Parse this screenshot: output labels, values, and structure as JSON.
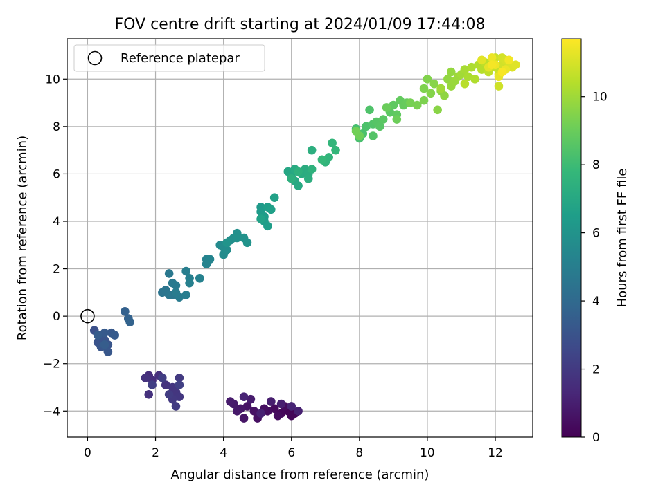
{
  "chart_data": {
    "type": "scatter",
    "title": "FOV centre drift starting at 2024/01/09 17:44:08",
    "xlabel": "Angular distance from reference (arcmin)",
    "ylabel": "Rotation from reference (arcmin)",
    "xlim": [
      -0.6,
      13.1
    ],
    "ylim": [
      -5.1,
      11.7
    ],
    "xticks": [
      0,
      2,
      4,
      6,
      8,
      10,
      12
    ],
    "yticks": [
      -4,
      -2,
      0,
      2,
      4,
      6,
      8,
      10
    ],
    "grid": true,
    "legend": {
      "position": "top-left",
      "entries": [
        "Reference platepar"
      ]
    },
    "reference_point": {
      "x": 0,
      "y": 0,
      "marker": "open-circle"
    },
    "colorbar": {
      "label": "Hours from first FF file",
      "colormap": "viridis",
      "range": [
        0,
        11.7
      ],
      "ticks": [
        0,
        2,
        4,
        6,
        8,
        10
      ]
    },
    "points_columns": [
      "x",
      "y",
      "hours"
    ],
    "points": [
      [
        6.1,
        -4.1,
        0.05
      ],
      [
        5.9,
        -4.0,
        0.1
      ],
      [
        6.0,
        -4.2,
        0.15
      ],
      [
        5.7,
        -4.1,
        0.2
      ],
      [
        5.5,
        -3.9,
        0.25
      ],
      [
        5.8,
        -3.8,
        0.3
      ],
      [
        5.6,
        -4.2,
        0.35
      ],
      [
        5.3,
        -4.0,
        0.4
      ],
      [
        5.2,
        -3.9,
        0.45
      ],
      [
        5.0,
        -4.3,
        0.5
      ],
      [
        4.9,
        -4.0,
        0.55
      ],
      [
        4.7,
        -3.8,
        0.6
      ],
      [
        4.6,
        -4.3,
        0.65
      ],
      [
        4.5,
        -3.9,
        0.7
      ],
      [
        4.4,
        -4.0,
        0.75
      ],
      [
        4.3,
        -3.7,
        0.8
      ],
      [
        4.2,
        -3.6,
        0.85
      ],
      [
        4.8,
        -3.5,
        0.9
      ],
      [
        5.4,
        -3.6,
        0.95
      ],
      [
        5.7,
        -3.7,
        1.0
      ],
      [
        6.2,
        -4.0,
        1.05
      ],
      [
        5.1,
        -4.1,
        1.1
      ],
      [
        4.6,
        -3.4,
        1.15
      ],
      [
        6.0,
        -3.8,
        1.2
      ],
      [
        1.8,
        -2.5,
        1.5
      ],
      [
        1.9,
        -2.7,
        1.55
      ],
      [
        2.1,
        -2.5,
        1.6
      ],
      [
        1.8,
        -3.3,
        1.65
      ],
      [
        1.7,
        -2.6,
        1.7
      ],
      [
        2.3,
        -2.9,
        1.75
      ],
      [
        2.5,
        -3.0,
        1.8
      ],
      [
        2.6,
        -3.2,
        1.85
      ],
      [
        2.7,
        -3.4,
        1.9
      ],
      [
        2.5,
        -3.5,
        1.95
      ],
      [
        2.7,
        -2.6,
        2.0
      ],
      [
        2.6,
        -3.8,
        2.05
      ],
      [
        2.4,
        -3.3,
        2.1
      ],
      [
        2.2,
        -2.6,
        2.15
      ],
      [
        1.9,
        -2.9,
        2.2
      ],
      [
        2.7,
        -2.9,
        2.25
      ],
      [
        0.2,
        -0.6,
        2.9
      ],
      [
        0.4,
        -0.8,
        2.95
      ],
      [
        0.3,
        -1.1,
        3.0
      ],
      [
        0.5,
        -1.0,
        3.05
      ],
      [
        0.6,
        -1.2,
        3.1
      ],
      [
        0.4,
        -1.3,
        3.15
      ],
      [
        0.6,
        -1.5,
        3.2
      ],
      [
        0.7,
        -0.7,
        3.25
      ],
      [
        0.5,
        -0.7,
        3.3
      ],
      [
        0.8,
        -0.8,
        3.35
      ],
      [
        0.3,
        -0.8,
        3.4
      ],
      [
        0.5,
        -1.2,
        3.45
      ],
      [
        1.1,
        0.2,
        3.6
      ],
      [
        1.2,
        -0.1,
        3.65
      ],
      [
        1.25,
        -0.25,
        3.7
      ],
      [
        2.2,
        1.0,
        4.5
      ],
      [
        2.3,
        1.1,
        4.55
      ],
      [
        2.4,
        0.9,
        4.6
      ],
      [
        2.5,
        0.9,
        4.65
      ],
      [
        2.4,
        1.8,
        4.7
      ],
      [
        2.5,
        1.4,
        4.75
      ],
      [
        2.6,
        1.3,
        4.8
      ],
      [
        2.7,
        0.8,
        4.85
      ],
      [
        2.6,
        1.0,
        4.9
      ],
      [
        2.9,
        0.9,
        4.95
      ],
      [
        2.9,
        1.9,
        5.0
      ],
      [
        3.0,
        1.6,
        5.05
      ],
      [
        3.0,
        1.4,
        5.1
      ],
      [
        3.3,
        1.6,
        5.15
      ],
      [
        3.5,
        2.4,
        5.2
      ],
      [
        3.5,
        2.2,
        5.25
      ],
      [
        3.6,
        2.4,
        5.3
      ],
      [
        3.9,
        3.0,
        5.55
      ],
      [
        4.0,
        2.6,
        5.6
      ],
      [
        4.0,
        2.9,
        5.65
      ],
      [
        4.1,
        2.8,
        5.7
      ],
      [
        4.2,
        3.2,
        5.75
      ],
      [
        4.3,
        3.3,
        5.8
      ],
      [
        4.4,
        3.5,
        5.85
      ],
      [
        4.4,
        3.3,
        5.9
      ],
      [
        4.6,
        3.3,
        5.95
      ],
      [
        4.7,
        3.1,
        6.0
      ],
      [
        4.1,
        3.1,
        6.05
      ],
      [
        5.1,
        4.6,
        6.3
      ],
      [
        5.1,
        4.4,
        6.35
      ],
      [
        5.2,
        4.2,
        6.4
      ],
      [
        5.2,
        4.0,
        6.45
      ],
      [
        5.3,
        3.8,
        6.5
      ],
      [
        5.3,
        4.6,
        6.55
      ],
      [
        5.4,
        4.5,
        6.6
      ],
      [
        5.5,
        5.0,
        6.65
      ],
      [
        5.1,
        4.1,
        6.7
      ],
      [
        5.9,
        6.1,
        6.9
      ],
      [
        6.0,
        5.9,
        6.95
      ],
      [
        6.1,
        5.7,
        7.0
      ],
      [
        6.2,
        5.5,
        7.05
      ],
      [
        6.1,
        6.2,
        7.1
      ],
      [
        6.3,
        6.0,
        7.15
      ],
      [
        6.4,
        6.2,
        7.2
      ],
      [
        6.5,
        6.0,
        7.25
      ],
      [
        6.5,
        5.8,
        7.3
      ],
      [
        6.6,
        7.0,
        7.35
      ],
      [
        6.0,
        5.8,
        7.4
      ],
      [
        6.2,
        6.1,
        7.45
      ],
      [
        6.6,
        6.2,
        7.5
      ],
      [
        7.0,
        6.5,
        7.6
      ],
      [
        7.1,
        6.7,
        7.65
      ],
      [
        7.2,
        7.3,
        7.7
      ],
      [
        7.3,
        7.0,
        7.75
      ],
      [
        6.9,
        6.6,
        7.8
      ],
      [
        7.9,
        7.9,
        8.2
      ],
      [
        8.0,
        7.5,
        8.25
      ],
      [
        8.1,
        7.7,
        8.3
      ],
      [
        8.2,
        8.0,
        8.35
      ],
      [
        8.3,
        8.7,
        8.4
      ],
      [
        8.4,
        8.1,
        8.45
      ],
      [
        8.4,
        7.6,
        8.5
      ],
      [
        8.5,
        8.2,
        8.55
      ],
      [
        8.6,
        8.0,
        8.6
      ],
      [
        8.7,
        8.3,
        8.65
      ],
      [
        8.9,
        8.6,
        8.7
      ],
      [
        9.0,
        8.9,
        8.75
      ],
      [
        9.1,
        8.5,
        8.8
      ],
      [
        9.2,
        9.1,
        8.85
      ],
      [
        9.3,
        8.9,
        8.9
      ],
      [
        9.4,
        9.0,
        8.95
      ],
      [
        8.8,
        8.8,
        9.0
      ],
      [
        9.1,
        8.3,
        9.05
      ],
      [
        8.0,
        7.6,
        9.1
      ],
      [
        7.9,
        7.8,
        9.15
      ],
      [
        9.5,
        9.0,
        9.25
      ],
      [
        9.7,
        8.9,
        9.3
      ],
      [
        9.9,
        9.1,
        9.35
      ],
      [
        9.9,
        9.6,
        9.4
      ],
      [
        10.0,
        10.0,
        9.45
      ],
      [
        10.1,
        9.4,
        9.5
      ],
      [
        10.2,
        9.8,
        9.55
      ],
      [
        10.3,
        8.7,
        9.6
      ],
      [
        10.4,
        9.5,
        9.65
      ],
      [
        10.5,
        9.3,
        9.7
      ],
      [
        10.6,
        10.0,
        9.75
      ],
      [
        10.7,
        10.3,
        9.8
      ],
      [
        10.7,
        9.7,
        9.85
      ],
      [
        10.8,
        9.9,
        9.9
      ],
      [
        10.9,
        10.1,
        9.95
      ],
      [
        10.4,
        9.6,
        10.0
      ],
      [
        11.0,
        10.2,
        10.05
      ],
      [
        11.1,
        10.4,
        10.15
      ],
      [
        11.2,
        10.1,
        10.2
      ],
      [
        11.3,
        10.5,
        10.25
      ],
      [
        11.4,
        10.0,
        10.3
      ],
      [
        11.5,
        10.6,
        10.35
      ],
      [
        11.6,
        10.4,
        10.4
      ],
      [
        11.1,
        9.8,
        10.45
      ],
      [
        11.7,
        10.7,
        10.55
      ],
      [
        11.8,
        10.3,
        10.6
      ],
      [
        11.9,
        10.8,
        10.65
      ],
      [
        12.0,
        10.5,
        10.7
      ],
      [
        12.0,
        10.9,
        10.75
      ],
      [
        12.1,
        10.2,
        10.8
      ],
      [
        12.1,
        9.7,
        10.85
      ],
      [
        12.2,
        10.6,
        10.9
      ],
      [
        12.2,
        10.9,
        10.95
      ],
      [
        12.3,
        10.8,
        11.0
      ],
      [
        12.4,
        10.7,
        11.05
      ],
      [
        12.5,
        10.5,
        11.1
      ],
      [
        12.6,
        10.6,
        11.15
      ],
      [
        11.6,
        10.8,
        11.2
      ],
      [
        11.8,
        10.5,
        11.25
      ],
      [
        12.1,
        10.1,
        11.3
      ],
      [
        12.3,
        10.4,
        11.35
      ],
      [
        11.9,
        10.9,
        11.4
      ],
      [
        12.0,
        10.6,
        11.45
      ],
      [
        12.4,
        10.8,
        11.5
      ],
      [
        11.9,
        10.6,
        11.55
      ],
      [
        12.2,
        10.3,
        11.6
      ]
    ]
  }
}
